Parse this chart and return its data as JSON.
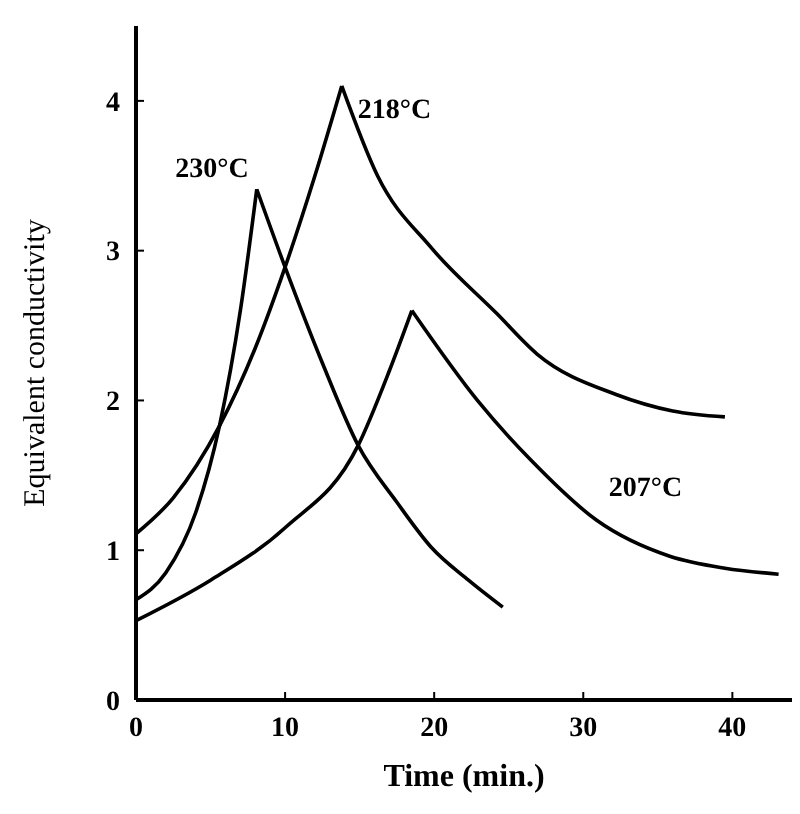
{
  "chart_data": {
    "type": "line",
    "xlabel": "Time (min.)",
    "ylabel": "Equivalent conductivity",
    "xlim": [
      0,
      44
    ],
    "ylim": [
      0,
      4.5
    ],
    "xticks": [
      0,
      10,
      20,
      30,
      40
    ],
    "yticks": [
      0,
      1,
      2,
      3,
      4
    ],
    "grid": false,
    "marker": "none",
    "line_style": "solid",
    "series": [
      {
        "name": "230°C",
        "color": "#000000",
        "x": [
          0,
          2,
          4,
          5.6,
          7,
          8.1,
          10,
          12.5,
          14.9,
          17.5,
          19.8,
          22.3,
          24.6
        ],
        "values": [
          0.67,
          0.85,
          1.25,
          1.83,
          2.6,
          3.41,
          2.89,
          2.25,
          1.7,
          1.32,
          1.02,
          0.8,
          0.62
        ]
      },
      {
        "name": "218°C",
        "color": "#000000",
        "x": [
          0,
          2.5,
          5.6,
          8,
          10,
          12,
          13.8,
          16.2,
          19.8,
          24.2,
          26.9,
          32.2,
          36,
          39.5
        ],
        "values": [
          1.11,
          1.35,
          1.83,
          2.35,
          2.89,
          3.5,
          4.1,
          3.5,
          3.02,
          2.58,
          2.31,
          2.04,
          1.93,
          1.89
        ]
      },
      {
        "name": "207°C",
        "color": "#000000",
        "x": [
          0,
          5,
          10,
          14.9,
          17,
          18.5,
          22.9,
          26.5,
          30.9,
          35.8,
          39.5,
          43.1
        ],
        "values": [
          0.53,
          0.8,
          1.15,
          1.7,
          2.2,
          2.6,
          2.0,
          1.6,
          1.2,
          0.96,
          0.88,
          0.84
        ]
      }
    ]
  }
}
